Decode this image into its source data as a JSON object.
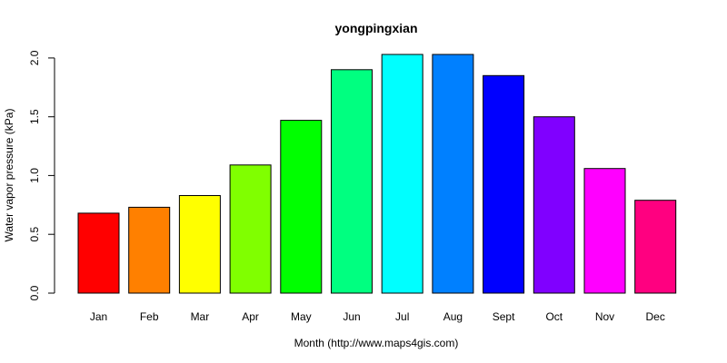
{
  "chart_data": {
    "type": "bar",
    "title": "yongpingxian",
    "xlabel": "Month (http://www.maps4gis.com)",
    "ylabel": "Water vapor pressure (kPa)",
    "categories": [
      "Jan",
      "Feb",
      "Mar",
      "Apr",
      "May",
      "Jun",
      "Jul",
      "Aug",
      "Sept",
      "Oct",
      "Nov",
      "Dec"
    ],
    "values": [
      0.68,
      0.73,
      0.83,
      1.09,
      1.47,
      1.9,
      2.03,
      2.03,
      1.85,
      1.5,
      1.06,
      0.79
    ],
    "colors": [
      "#FF0000",
      "#FF8000",
      "#FFFF00",
      "#80FF00",
      "#00FF00",
      "#00FF80",
      "#00FFFF",
      "#0080FF",
      "#0000FF",
      "#8000FF",
      "#FF00FF",
      "#FF0080"
    ],
    "yticks": [
      0.0,
      0.5,
      1.0,
      1.5,
      2.0
    ],
    "ytick_labels": [
      "0.0",
      "0.5",
      "1.0",
      "1.5",
      "2.0"
    ],
    "ylim": [
      0,
      2.03
    ],
    "grid": false,
    "legend": "none"
  }
}
